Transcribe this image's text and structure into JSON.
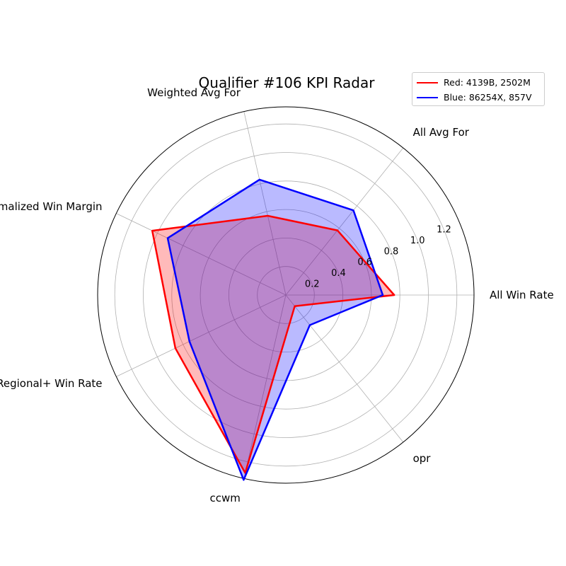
{
  "chart_data": {
    "type": "radar",
    "title": "Qualifier #106 KPI Radar",
    "axes": [
      "All Win Rate",
      "All Avg For",
      "Weighted Avg For",
      "Weighted Normalized Win Margin",
      "Regional+ Win Rate",
      "ccwm",
      "opr"
    ],
    "r_ticks": [
      "0.2",
      "0.4",
      "0.6",
      "0.8",
      "1.0",
      "1.2"
    ],
    "r_range": [
      0,
      1.32
    ],
    "grid": true,
    "legend_position": "top-right",
    "series": [
      {
        "name": "Red: 4139B, 2502M",
        "color": "#ff0000",
        "fill": "#ff0000",
        "values": [
          0.76,
          0.58,
          0.57,
          1.04,
          0.86,
          1.28,
          0.1
        ]
      },
      {
        "name": "Blue: 86254X, 857V",
        "color": "#0000ff",
        "fill": "#0000ff",
        "values": [
          0.68,
          0.76,
          0.83,
          0.92,
          0.75,
          1.33,
          0.27
        ]
      }
    ]
  }
}
